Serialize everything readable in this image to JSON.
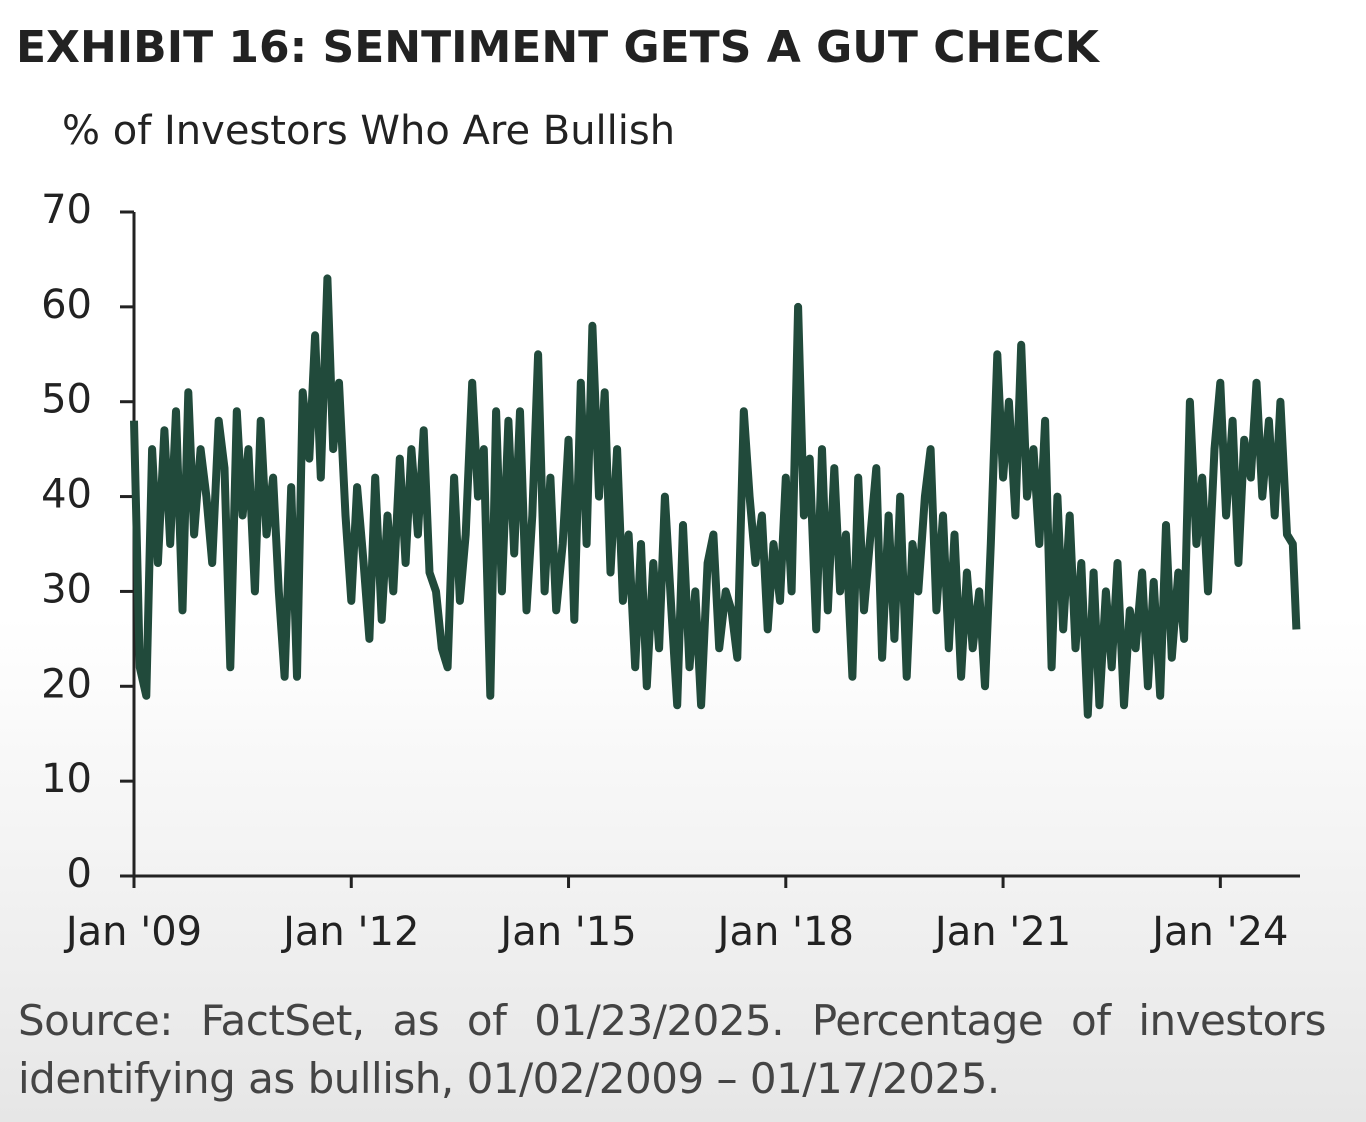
{
  "chart_data": {
    "type": "line",
    "title": "EXHIBIT 16: SENTIMENT GETS A GUT CHECK",
    "subtitle": "% of Investors Who Are Bullish",
    "source": "Source: FactSet, as of 01/23/2025. Percentage of investors identifying as bullish, 01/02/2009 – 01/17/2025.",
    "color": "#214a3b",
    "xlim": [
      2009,
      2025.1
    ],
    "ylim": [
      0,
      70
    ],
    "yticks": [
      0,
      10,
      20,
      30,
      40,
      50,
      60,
      70
    ],
    "xticks": [
      {
        "value": 2009,
        "label": "Jan '09"
      },
      {
        "value": 2012,
        "label": "Jan '12"
      },
      {
        "value": 2015,
        "label": "Jan '15"
      },
      {
        "value": 2018,
        "label": "Jan '18"
      },
      {
        "value": 2021,
        "label": "Jan '21"
      },
      {
        "value": 2024,
        "label": "Jan '24"
      }
    ],
    "x": [
      2009,
      2009.08,
      2009.17,
      2009.25,
      2009.33,
      2009.42,
      2009.5,
      2009.58,
      2009.67,
      2009.75,
      2009.83,
      2009.92,
      2010,
      2010.08,
      2010.17,
      2010.25,
      2010.33,
      2010.42,
      2010.5,
      2010.58,
      2010.67,
      2010.75,
      2010.83,
      2010.92,
      2011,
      2011.08,
      2011.17,
      2011.25,
      2011.33,
      2011.42,
      2011.5,
      2011.58,
      2011.67,
      2011.75,
      2011.83,
      2011.92,
      2012,
      2012.08,
      2012.17,
      2012.25,
      2012.33,
      2012.42,
      2012.5,
      2012.58,
      2012.67,
      2012.75,
      2012.83,
      2012.92,
      2013,
      2013.08,
      2013.17,
      2013.25,
      2013.33,
      2013.42,
      2013.5,
      2013.58,
      2013.67,
      2013.75,
      2013.83,
      2013.92,
      2014,
      2014.08,
      2014.17,
      2014.25,
      2014.33,
      2014.42,
      2014.5,
      2014.58,
      2014.67,
      2014.75,
      2014.83,
      2014.92,
      2015,
      2015.08,
      2015.17,
      2015.25,
      2015.33,
      2015.42,
      2015.5,
      2015.58,
      2015.67,
      2015.75,
      2015.83,
      2015.92,
      2016,
      2016.08,
      2016.17,
      2016.25,
      2016.33,
      2016.42,
      2016.5,
      2016.58,
      2016.67,
      2016.75,
      2016.83,
      2016.92,
      2017,
      2017.08,
      2017.17,
      2017.25,
      2017.33,
      2017.42,
      2017.5,
      2017.58,
      2017.67,
      2017.75,
      2017.83,
      2017.92,
      2018,
      2018.08,
      2018.17,
      2018.25,
      2018.33,
      2018.42,
      2018.5,
      2018.58,
      2018.67,
      2018.75,
      2018.83,
      2018.92,
      2019,
      2019.08,
      2019.17,
      2019.25,
      2019.33,
      2019.42,
      2019.5,
      2019.58,
      2019.67,
      2019.75,
      2019.83,
      2019.92,
      2020,
      2020.08,
      2020.17,
      2020.25,
      2020.33,
      2020.42,
      2020.5,
      2020.58,
      2020.67,
      2020.75,
      2020.83,
      2020.92,
      2021,
      2021.08,
      2021.17,
      2021.25,
      2021.33,
      2021.42,
      2021.5,
      2021.58,
      2021.67,
      2021.75,
      2021.83,
      2021.92,
      2022,
      2022.08,
      2022.17,
      2022.25,
      2022.33,
      2022.42,
      2022.5,
      2022.58,
      2022.67,
      2022.75,
      2022.83,
      2022.92,
      2023,
      2023.08,
      2023.17,
      2023.25,
      2023.33,
      2023.42,
      2023.5,
      2023.58,
      2023.67,
      2023.75,
      2023.83,
      2023.92,
      2024,
      2024.08,
      2024.17,
      2024.25,
      2024.33,
      2024.42,
      2024.5,
      2024.58,
      2024.67,
      2024.75,
      2024.83,
      2024.92,
      2025,
      2025.05
    ],
    "values": [
      48,
      22,
      19,
      45,
      33,
      47,
      35,
      49,
      28,
      51,
      36,
      45,
      40,
      33,
      48,
      43,
      22,
      49,
      38,
      45,
      30,
      48,
      36,
      42,
      30,
      21,
      41,
      21,
      51,
      44,
      57,
      42,
      63,
      45,
      52,
      38,
      29,
      41,
      33,
      25,
      42,
      27,
      38,
      30,
      44,
      33,
      45,
      36,
      47,
      32,
      30,
      24,
      22,
      42,
      29,
      36,
      52,
      40,
      45,
      19,
      49,
      30,
      48,
      34,
      49,
      28,
      38,
      55,
      30,
      42,
      28,
      35,
      46,
      27,
      52,
      35,
      58,
      40,
      51,
      32,
      45,
      29,
      36,
      22,
      35,
      20,
      33,
      24,
      40,
      28,
      18,
      37,
      22,
      30,
      18,
      33,
      36,
      24,
      30,
      28,
      23,
      49,
      40,
      33,
      38,
      26,
      35,
      29,
      42,
      30,
      60,
      38,
      44,
      26,
      45,
      28,
      43,
      30,
      36,
      21,
      42,
      28,
      36,
      43,
      23,
      38,
      25,
      40,
      21,
      35,
      30,
      40,
      45,
      28,
      38,
      24,
      36,
      21,
      32,
      24,
      30,
      20,
      35,
      55,
      42,
      50,
      38,
      56,
      40,
      45,
      35,
      48,
      22,
      40,
      26,
      38,
      24,
      33,
      17,
      32,
      18,
      30,
      22,
      33,
      18,
      28,
      24,
      32,
      20,
      31,
      19,
      37,
      23,
      32,
      25,
      50,
      35,
      42,
      30,
      45,
      52,
      38,
      48,
      33,
      46,
      42,
      52,
      40,
      48,
      38,
      50,
      36,
      35,
      26
    ]
  }
}
